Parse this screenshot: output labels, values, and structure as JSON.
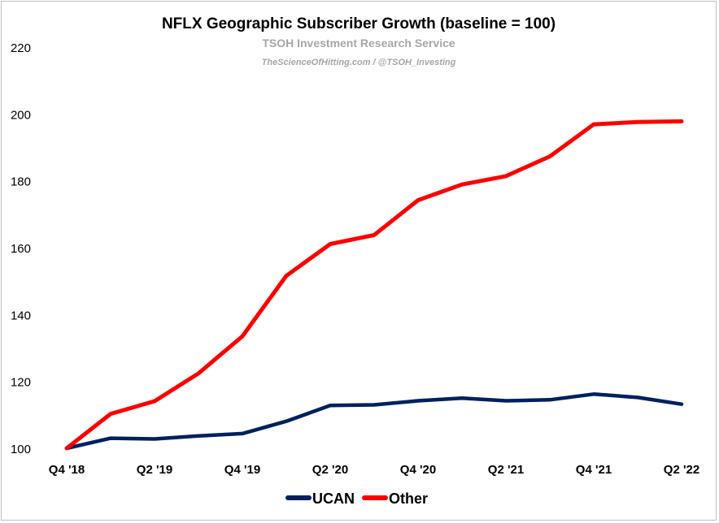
{
  "chart_data": {
    "type": "line",
    "title": "NFLX Geographic Subscriber Growth (baseline = 100)",
    "subtitle": "TSOH Investment Research Service",
    "credit": "TheScienceOfHitting.com / @TSOH_Investing",
    "xlabel": "",
    "ylabel": "",
    "ylim": [
      100,
      220
    ],
    "yticks": [
      100,
      120,
      140,
      160,
      180,
      200,
      220
    ],
    "x": [
      "Q4 '18",
      "Q1 '19",
      "Q2 '19",
      "Q3 '19",
      "Q4 '19",
      "Q1 '20",
      "Q2 '20",
      "Q3 '20",
      "Q4 '20",
      "Q1 '21",
      "Q2 '21",
      "Q3 '21",
      "Q4 '21",
      "Q1 '22",
      "Q2 '22"
    ],
    "xtick_labels": [
      "Q4 '18",
      "",
      "Q2 '19",
      "",
      "Q4 '19",
      "",
      "Q2 '20",
      "",
      "Q4 '20",
      "",
      "Q2 '21",
      "",
      "Q4 '21",
      "",
      "Q2 '22"
    ],
    "series": [
      {
        "name": "UCAN",
        "color": "#002060",
        "values": [
          100,
          103,
          102.8,
          103.7,
          104.4,
          108.1,
          112.8,
          113,
          114.2,
          115,
          114.2,
          114.5,
          116.2,
          115.2,
          113.2
        ]
      },
      {
        "name": "Other",
        "color": "#ff0000",
        "values": [
          100,
          110.3,
          114.1,
          122.4,
          133.5,
          151.6,
          161.1,
          163.8,
          174.2,
          178.9,
          181.4,
          187.3,
          196.9,
          197.6,
          197.8
        ]
      }
    ],
    "grid": false,
    "legend_position": "bottom"
  }
}
